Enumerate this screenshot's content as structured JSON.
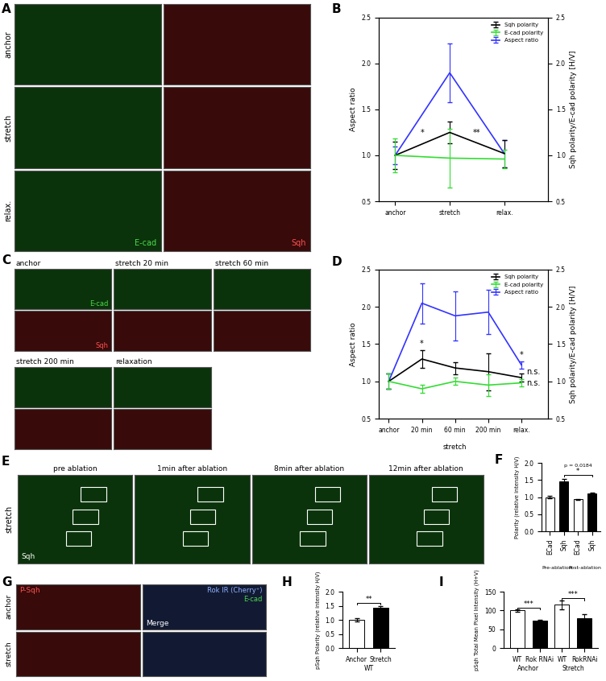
{
  "chart_data": [
    {
      "panel": "B",
      "type": "line",
      "categories": [
        "anchor",
        "stretch",
        "relax."
      ],
      "ylabel": "Aspect ratio",
      "y2label": "Sqh polarity/E-cad polarity [H/V]",
      "ylim": [
        0.5,
        2.5
      ],
      "yticks": [
        0.5,
        1.0,
        1.5,
        2.0,
        2.5
      ],
      "y2lim": [
        0.5,
        2.5
      ],
      "y2ticks": [
        0.5,
        1.0,
        1.5,
        2.0,
        2.5
      ],
      "legend": "upper right",
      "series": [
        {
          "name": "Sqh polarity",
          "color": "#000000",
          "axis": "y2",
          "values": [
            1.0,
            1.25,
            1.02
          ],
          "errors": [
            0.15,
            0.12,
            0.15
          ]
        },
        {
          "name": "E-cad polarity",
          "color": "#33dd33",
          "axis": "y2",
          "values": [
            1.0,
            0.97,
            0.96
          ],
          "errors": [
            0.18,
            0.32,
            0.1
          ]
        },
        {
          "name": "Aspect ratio",
          "color": "#3333ff",
          "values": [
            1.0,
            1.9,
            1.02
          ],
          "errors": [
            0.1,
            0.32,
            0.15
          ]
        }
      ],
      "annotations": [
        {
          "text": "*",
          "x": 0.5,
          "y": 1.2
        },
        {
          "text": "**",
          "x": 1.5,
          "y": 1.2
        }
      ]
    },
    {
      "panel": "D",
      "type": "line",
      "categories": [
        "anchor",
        "20 min",
        "60 min",
        "200 min",
        "relax."
      ],
      "ylabel": "Aspect ratio",
      "y2label": "Sqh polarity/E-cad polarity [H/V]",
      "ylim": [
        0.5,
        2.5
      ],
      "yticks": [
        0.5,
        1.0,
        1.5,
        2.0,
        2.5
      ],
      "y2lim": [
        0.5,
        2.5
      ],
      "y2ticks": [
        0.5,
        1.0,
        1.5,
        2.0,
        2.5
      ],
      "legend": "upper right",
      "groups": [
        {
          "label": "stretch",
          "categories": [
            1,
            2,
            3
          ]
        }
      ],
      "series": [
        {
          "name": "Sqh polarity",
          "color": "#000000",
          "axis": "y2",
          "values": [
            1.0,
            1.3,
            1.18,
            1.13,
            1.05
          ],
          "errors": [
            0.1,
            0.12,
            0.08,
            0.25,
            0.05
          ]
        },
        {
          "name": "E-cad polarity",
          "color": "#33dd33",
          "axis": "y2",
          "values": [
            1.0,
            0.9,
            1.0,
            0.95,
            0.98
          ],
          "errors": [
            0.1,
            0.05,
            0.05,
            0.15,
            0.05
          ]
        },
        {
          "name": "Aspect ratio",
          "color": "#3333ff",
          "values": [
            1.0,
            2.05,
            1.88,
            1.93,
            1.22
          ],
          "errors": [
            0.1,
            0.27,
            0.33,
            0.3,
            0.05
          ]
        }
      ],
      "annotations": [
        {
          "text": "*",
          "x": 1,
          "y": 1.45
        },
        {
          "text": "*",
          "x": 4,
          "y": 1.3
        },
        {
          "text": "n.s.",
          "x": 4.35,
          "y": 1.07
        },
        {
          "text": "n.s.",
          "x": 4.35,
          "y": 0.92
        }
      ]
    },
    {
      "panel": "F",
      "type": "bar",
      "categories": [
        "ECad",
        "Sqh",
        "ECad",
        "Sqh"
      ],
      "values": [
        1.0,
        1.45,
        0.93,
        1.1
      ],
      "errors": [
        0.03,
        0.08,
        0.01,
        0.02
      ],
      "colors": [
        "#ffffff",
        "#000000",
        "#ffffff",
        "#000000"
      ],
      "ylabel": "Polarity (relative intensity H/V)",
      "ylim": [
        0.0,
        2.0
      ],
      "yticks": [
        0.0,
        0.5,
        1.0,
        1.5,
        2.0
      ],
      "groups": [
        {
          "label": "Pre-ablation",
          "categories": [
            0,
            1
          ]
        },
        {
          "label": "Post-ablation",
          "categories": [
            2,
            3
          ]
        }
      ],
      "annotations": [
        {
          "text": "*",
          "between": [
            1,
            3
          ],
          "y": 1.65
        },
        {
          "text": "p = 0.0184",
          "x": 2,
          "y": 1.85
        }
      ]
    },
    {
      "panel": "H",
      "type": "bar",
      "categories": [
        "Anchor",
        "Stretch"
      ],
      "values": [
        1.0,
        1.42
      ],
      "errors": [
        0.05,
        0.08
      ],
      "colors": [
        "#ffffff",
        "#000000"
      ],
      "ylabel": "pSqh Polarity (relative intensity H/V)",
      "ylim": [
        0.0,
        2.0
      ],
      "yticks": [
        0.0,
        0.5,
        1.0,
        1.5,
        2.0
      ],
      "groups": [
        {
          "label": "WT",
          "categories": [
            0,
            1
          ]
        }
      ],
      "annotations": [
        {
          "text": "**",
          "between": [
            0,
            1
          ],
          "y": 1.6
        }
      ]
    },
    {
      "panel": "I",
      "type": "bar",
      "categories": [
        "WT",
        "Rok RNAi",
        "WT",
        "RokRNAi"
      ],
      "values": [
        100,
        72,
        115,
        80
      ],
      "errors": [
        3,
        3,
        12,
        10
      ],
      "colors": [
        "#ffffff",
        "#000000",
        "#ffffff",
        "#000000"
      ],
      "ylabel": "pSqh Total Mean Pixel Intensity (H+V)",
      "ylim": [
        0,
        150
      ],
      "yticks": [
        0,
        50,
        100,
        150
      ],
      "groups": [
        {
          "label": "Anchor",
          "categories": [
            0,
            1
          ]
        },
        {
          "label": "Stretch",
          "categories": [
            2,
            3
          ]
        }
      ],
      "annotations": [
        {
          "text": "***",
          "between": [
            0,
            1
          ],
          "y": 108
        },
        {
          "text": "***",
          "between": [
            2,
            3
          ],
          "y": 132
        }
      ]
    }
  ],
  "image_panels": [
    {
      "panel": "A",
      "rows": [
        "anchor",
        "stretch",
        "relax."
      ],
      "channels": [
        {
          "label": "E-cad",
          "color": "#4cd94c"
        },
        {
          "label": "Sqh",
          "color": "#ff5050"
        }
      ]
    },
    {
      "panel": "C",
      "columns": [
        "anchor",
        "stretch 20 min",
        "stretch 60 min",
        "stretch 200 min",
        "relaxation"
      ],
      "channels": [
        {
          "label": "E-cad",
          "color": "#4cd94c"
        },
        {
          "label": "Sqh",
          "color": "#ff5050"
        }
      ]
    },
    {
      "panel": "E",
      "row_label": "stretch",
      "columns": [
        "pre ablation",
        "1min after ablation",
        "8min after ablation",
        "12min after ablation"
      ],
      "channel": {
        "label": "Sqh",
        "color": "#ffffff"
      }
    },
    {
      "panel": "G",
      "rows": [
        "anchor",
        "stretch"
      ],
      "left_channel": {
        "label": "P-Sqh",
        "color": "#ff5050"
      },
      "right_channels": [
        {
          "label": "Rok IR (Cherry⁺)",
          "color": "#8fb0ff"
        },
        {
          "label": "E-cad",
          "color": "#4cd94c"
        }
      ],
      "right_title": "Merge"
    }
  ]
}
